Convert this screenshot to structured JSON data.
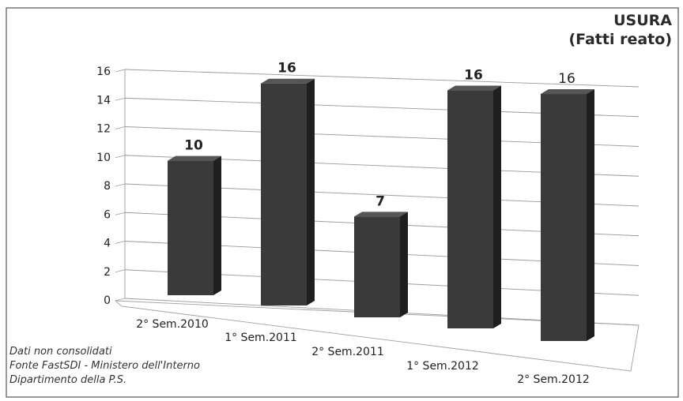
{
  "chart_data": {
    "type": "bar",
    "title": "USURA",
    "subtitle": "(Fatti reato)",
    "categories": [
      "2° Sem.2010",
      "1° Sem.2011",
      "2° Sem.2011",
      "1° Sem.2012",
      "2° Sem.2012"
    ],
    "values": [
      10,
      16,
      7,
      16,
      16
    ],
    "data_labels": [
      "10",
      "16",
      "7",
      "16",
      "16"
    ],
    "y_ticks": [
      "0",
      "2",
      "4",
      "6",
      "8",
      "10",
      "12",
      "14",
      "16"
    ],
    "ylim": [
      0,
      16
    ],
    "grid": true,
    "style": "3d-column",
    "bar_color": "#3a3a3a"
  },
  "notes": [
    "Dati non consolidati",
    "Fonte FastSDI - Ministero dell'Interno",
    "Dipartimento della P.S."
  ]
}
